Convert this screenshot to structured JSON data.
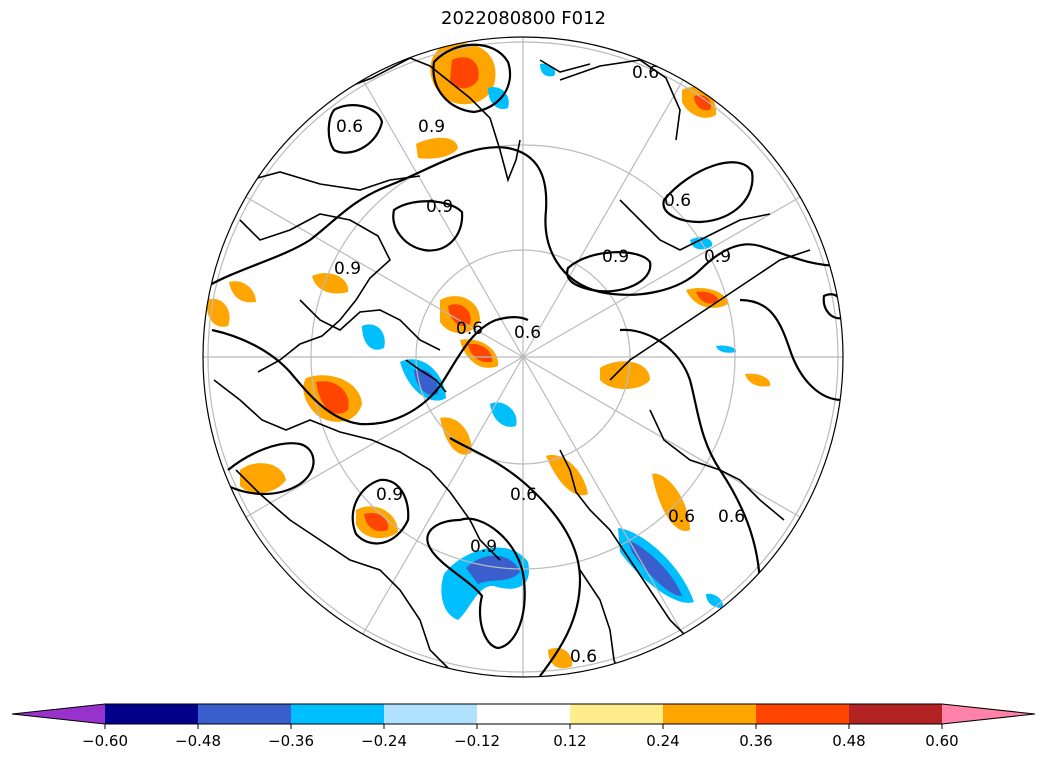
{
  "title": "2022080800 F012",
  "projection": "north-polar-stereographic",
  "contour_values": [
    0.6,
    0.9
  ],
  "contour_labels": [
    {
      "text": "0.6",
      "value": 0.6
    },
    {
      "text": "0.9",
      "value": 0.9
    },
    {
      "text": "0.9",
      "value": 0.9
    },
    {
      "text": "0.6",
      "value": 0.6
    },
    {
      "text": "0.9",
      "value": 0.9
    },
    {
      "text": "0.6",
      "value": 0.6
    },
    {
      "text": "0.9",
      "value": 0.9
    },
    {
      "text": "0.6",
      "value": 0.6
    },
    {
      "text": "0.6",
      "value": 0.6
    },
    {
      "text": "0.9",
      "value": 0.9
    },
    {
      "text": "0.6",
      "value": 0.6
    },
    {
      "text": "0.9",
      "value": 0.9
    },
    {
      "text": "0.6",
      "value": 0.6
    },
    {
      "text": "0.9",
      "value": 0.9
    },
    {
      "text": "0.6",
      "value": 0.6
    },
    {
      "text": "0.6",
      "value": 0.6
    }
  ],
  "colorbar": {
    "levels": [
      -0.6,
      -0.48,
      -0.36,
      -0.24,
      -0.12,
      0.12,
      0.24,
      0.36,
      0.48,
      0.6
    ],
    "tick_labels": [
      "−0.60",
      "−0.48",
      "−0.36",
      "−0.24",
      "−0.12",
      "0.12",
      "0.24",
      "0.36",
      "0.48",
      "0.60"
    ],
    "colors": [
      "#9932cc",
      "#00008b",
      "#3a5fcd",
      "#00bfff",
      "#b0e2ff",
      "#ffffff",
      "#ffec8b",
      "#ffa500",
      "#ff4500",
      "#b22222",
      "#ff82ab"
    ],
    "extend": "both"
  },
  "colors": {
    "coastline": "#000000",
    "graticule": "#bbbbbb",
    "contour": "#000000"
  }
}
